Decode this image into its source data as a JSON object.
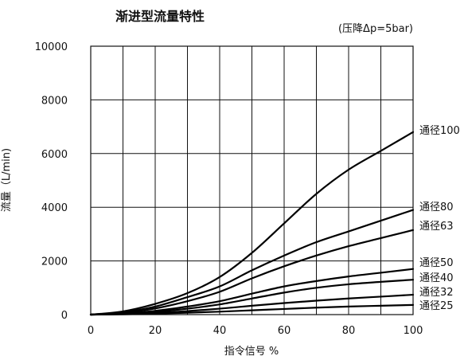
{
  "chart_data": {
    "type": "line",
    "title": "渐进型流量特性",
    "subtitle": "(压降Δp=5bar)",
    "xlabel": "指令信号 %",
    "ylabel": "流量（L/min)",
    "xlim": [
      0,
      100
    ],
    "ylim": [
      0,
      10000
    ],
    "xticks": [
      "0",
      "20",
      "40",
      "60",
      "80",
      "100"
    ],
    "yticks": [
      "0",
      "2000",
      "4000",
      "6000",
      "8000",
      "10000"
    ],
    "grid": true,
    "x": [
      0,
      10,
      20,
      30,
      40,
      50,
      60,
      70,
      80,
      90,
      100
    ],
    "series": [
      {
        "name": "通径100",
        "values": [
          0,
          120,
          400,
          800,
          1400,
          2300,
          3400,
          4500,
          5400,
          6100,
          6800
        ]
      },
      {
        "name": "通径80",
        "values": [
          0,
          90,
          300,
          650,
          1050,
          1650,
          2200,
          2700,
          3100,
          3500,
          3900
        ]
      },
      {
        "name": "通径63",
        "values": [
          0,
          70,
          230,
          500,
          850,
          1350,
          1800,
          2200,
          2550,
          2850,
          3150
        ]
      },
      {
        "name": "通径50",
        "values": [
          0,
          40,
          140,
          300,
          500,
          780,
          1050,
          1250,
          1420,
          1560,
          1700
        ]
      },
      {
        "name": "通径40",
        "values": [
          0,
          30,
          100,
          220,
          380,
          600,
          820,
          1000,
          1130,
          1220,
          1300
        ]
      },
      {
        "name": "通径32",
        "values": [
          0,
          20,
          60,
          130,
          220,
          330,
          430,
          520,
          600,
          670,
          740
        ]
      },
      {
        "name": "通径25",
        "values": [
          0,
          10,
          35,
          70,
          110,
          160,
          210,
          260,
          300,
          330,
          360
        ]
      }
    ]
  }
}
